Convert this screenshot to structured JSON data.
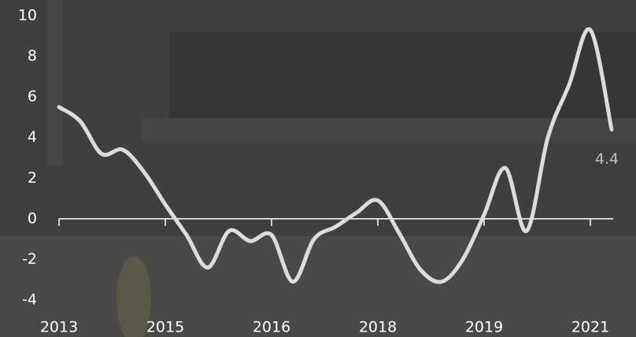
{
  "chart_data": {
    "type": "line",
    "categories": [
      "2013",
      null,
      null,
      null,
      null,
      "2015",
      null,
      null,
      null,
      null,
      "2016",
      null,
      null,
      null,
      null,
      "2018",
      null,
      null,
      null,
      null,
      "2019",
      null,
      null,
      null,
      null,
      "2021",
      null
    ],
    "values": [
      5.5,
      4.8,
      3.2,
      3.4,
      2.3,
      0.7,
      -0.8,
      -2.4,
      -0.6,
      -1.1,
      -0.8,
      -3.1,
      -1.0,
      -0.4,
      0.3,
      0.9,
      -0.7,
      -2.5,
      -3.1,
      -2.0,
      0.2,
      2.5,
      -0.6,
      4.0,
      6.6,
      9.3,
      4.4
    ],
    "value_labels": [
      null,
      null,
      null,
      null,
      null,
      null,
      null,
      null,
      null,
      null,
      null,
      null,
      null,
      null,
      null,
      null,
      null,
      null,
      null,
      null,
      null,
      null,
      null,
      null,
      null,
      null,
      "4.4"
    ],
    "color": "#dcdcdc",
    "ylim": [
      -4,
      10
    ],
    "yticks": [
      -4,
      -2,
      0,
      2,
      4,
      6,
      8,
      10
    ]
  }
}
